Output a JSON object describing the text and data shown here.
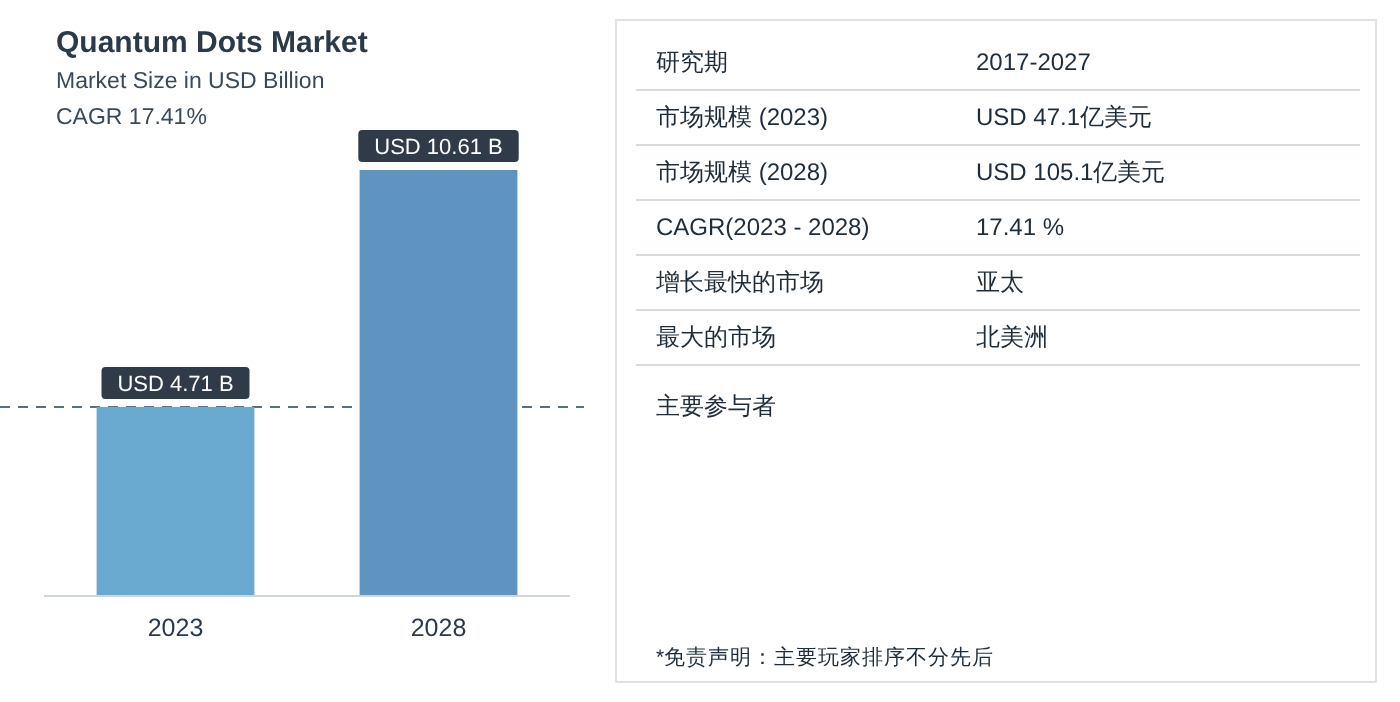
{
  "chart_data": [
    {
      "type": "bar",
      "title": "Quantum Dots Market",
      "subtitle": "Market Size in USD Billion",
      "annotations": [
        "CAGR 17.41%"
      ],
      "categories": [
        "2023",
        "2028"
      ],
      "values": [
        4.71,
        10.61
      ],
      "colors": [
        "#6aaad0",
        "#5f94c0"
      ],
      "value_labels": [
        "USD 4.71 B",
        "USD 10.61 B"
      ],
      "ref_lines": [
        {
          "axis": "y",
          "value": 4.71,
          "line_style": "dashed",
          "color": "#5a6e7e"
        }
      ]
    },
    {
      "type": "other",
      "annotations": [
        "研究期",
        "2017-2027",
        "市场规模 (2023)",
        "USD 47.1亿美元",
        "市场规模 (2028)",
        "USD 105.1亿美元",
        "CAGR(2023 - 2028)",
        "17.41 %",
        "增长最快的市场",
        "亚太",
        "最大的市场",
        "北美洲",
        "主要参与者",
        "*免责声明：主要玩家排序不分先后"
      ]
    }
  ]
}
